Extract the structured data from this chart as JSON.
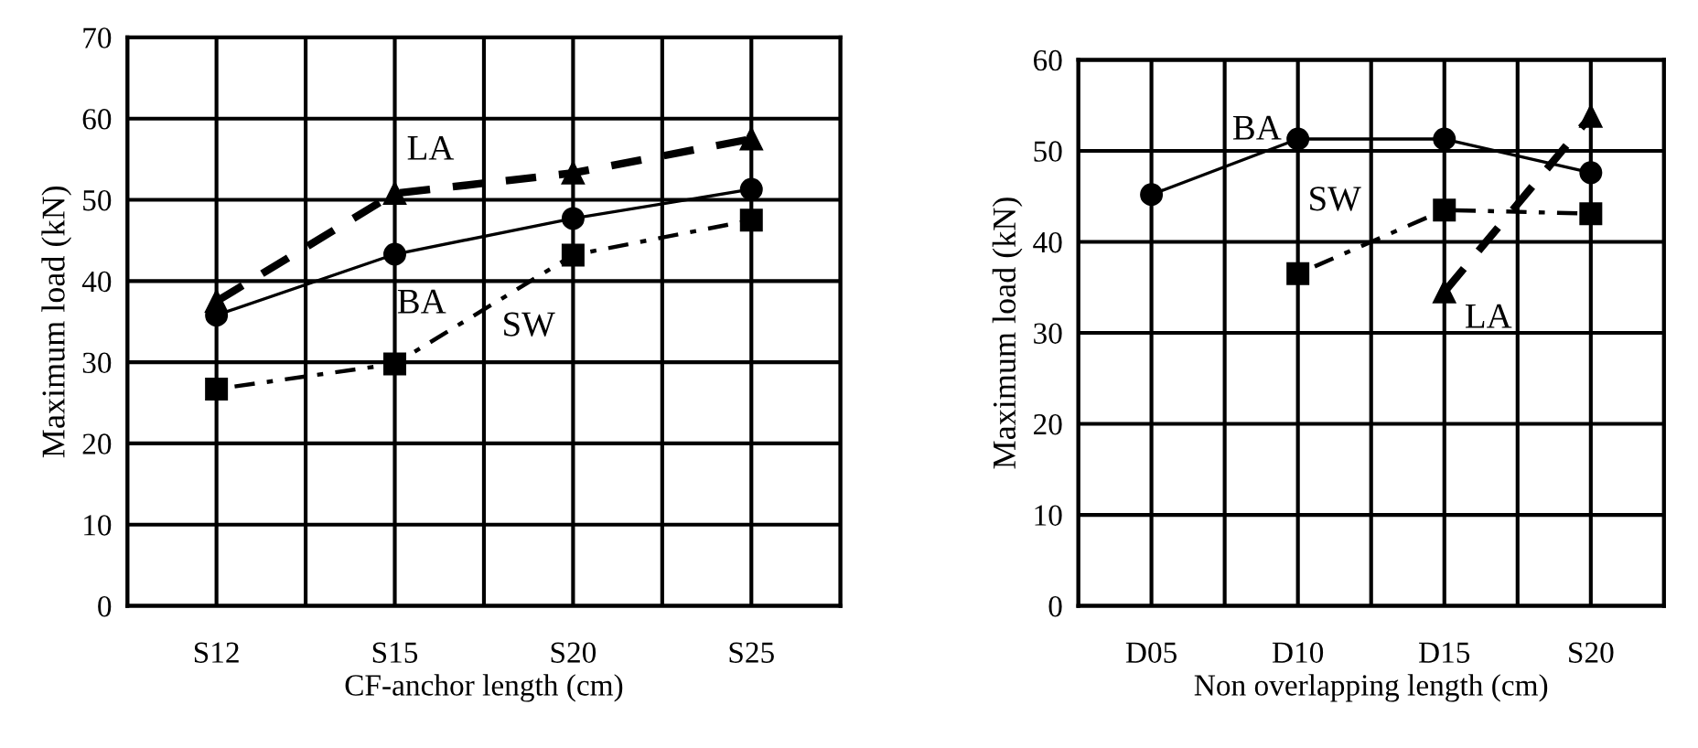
{
  "chart_data": [
    {
      "type": "line",
      "xlabel": "CF-anchor length (cm)",
      "ylabel": "Maximum load (kN)",
      "categories": [
        "S12",
        "S15",
        "S20",
        "S25"
      ],
      "ylim": [
        0,
        70
      ],
      "yticks": [
        0,
        10,
        20,
        30,
        40,
        50,
        60,
        70
      ],
      "grid": true,
      "legend": false,
      "series": [
        {
          "name": "BA",
          "color": "#000000",
          "marker": "circle",
          "line_style": "solid",
          "values": [
            35.8,
            43.3,
            47.7,
            51.3
          ]
        },
        {
          "name": "LA",
          "color": "#000000",
          "marker": "triangle",
          "line_style": "dashed",
          "values": [
            37.5,
            50.8,
            53.3,
            57.5
          ]
        },
        {
          "name": "SW",
          "color": "#000000",
          "marker": "square",
          "line_style": "dotted",
          "values": [
            26.7,
            29.8,
            43.2,
            47.5
          ]
        }
      ]
    },
    {
      "type": "line",
      "xlabel": "Non overlapping length (cm)",
      "ylabel": "Maximum load (kN)",
      "categories": [
        "D05",
        "D10",
        "D15",
        "S20"
      ],
      "ylim": [
        0,
        60
      ],
      "yticks": [
        0,
        10,
        20,
        30,
        40,
        50,
        60
      ],
      "grid": true,
      "legend": false,
      "series": [
        {
          "name": "BA",
          "color": "#000000",
          "marker": "circle",
          "line_style": "solid",
          "values": [
            45.2,
            51.3,
            51.3,
            47.6
          ]
        },
        {
          "name": "SW",
          "color": "#000000",
          "marker": "square",
          "line_style": "dotted",
          "values": [
            null,
            36.5,
            43.5,
            43.1
          ]
        },
        {
          "name": "LA",
          "color": "#000000",
          "marker": "triangle",
          "line_style": "dashed",
          "values": [
            null,
            null,
            34.5,
            53.8
          ]
        }
      ]
    }
  ]
}
